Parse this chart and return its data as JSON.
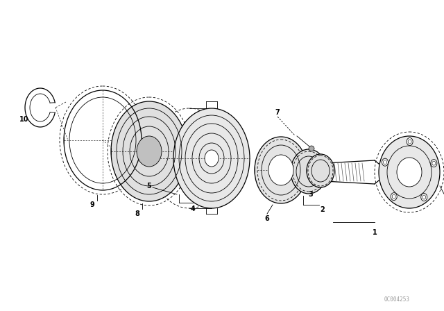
{
  "bg_color": "#ffffff",
  "line_color": "#000000",
  "dash_color": "#000000",
  "watermark": "OC004253",
  "fig_w": 6.4,
  "fig_h": 4.48,
  "dpi": 100
}
